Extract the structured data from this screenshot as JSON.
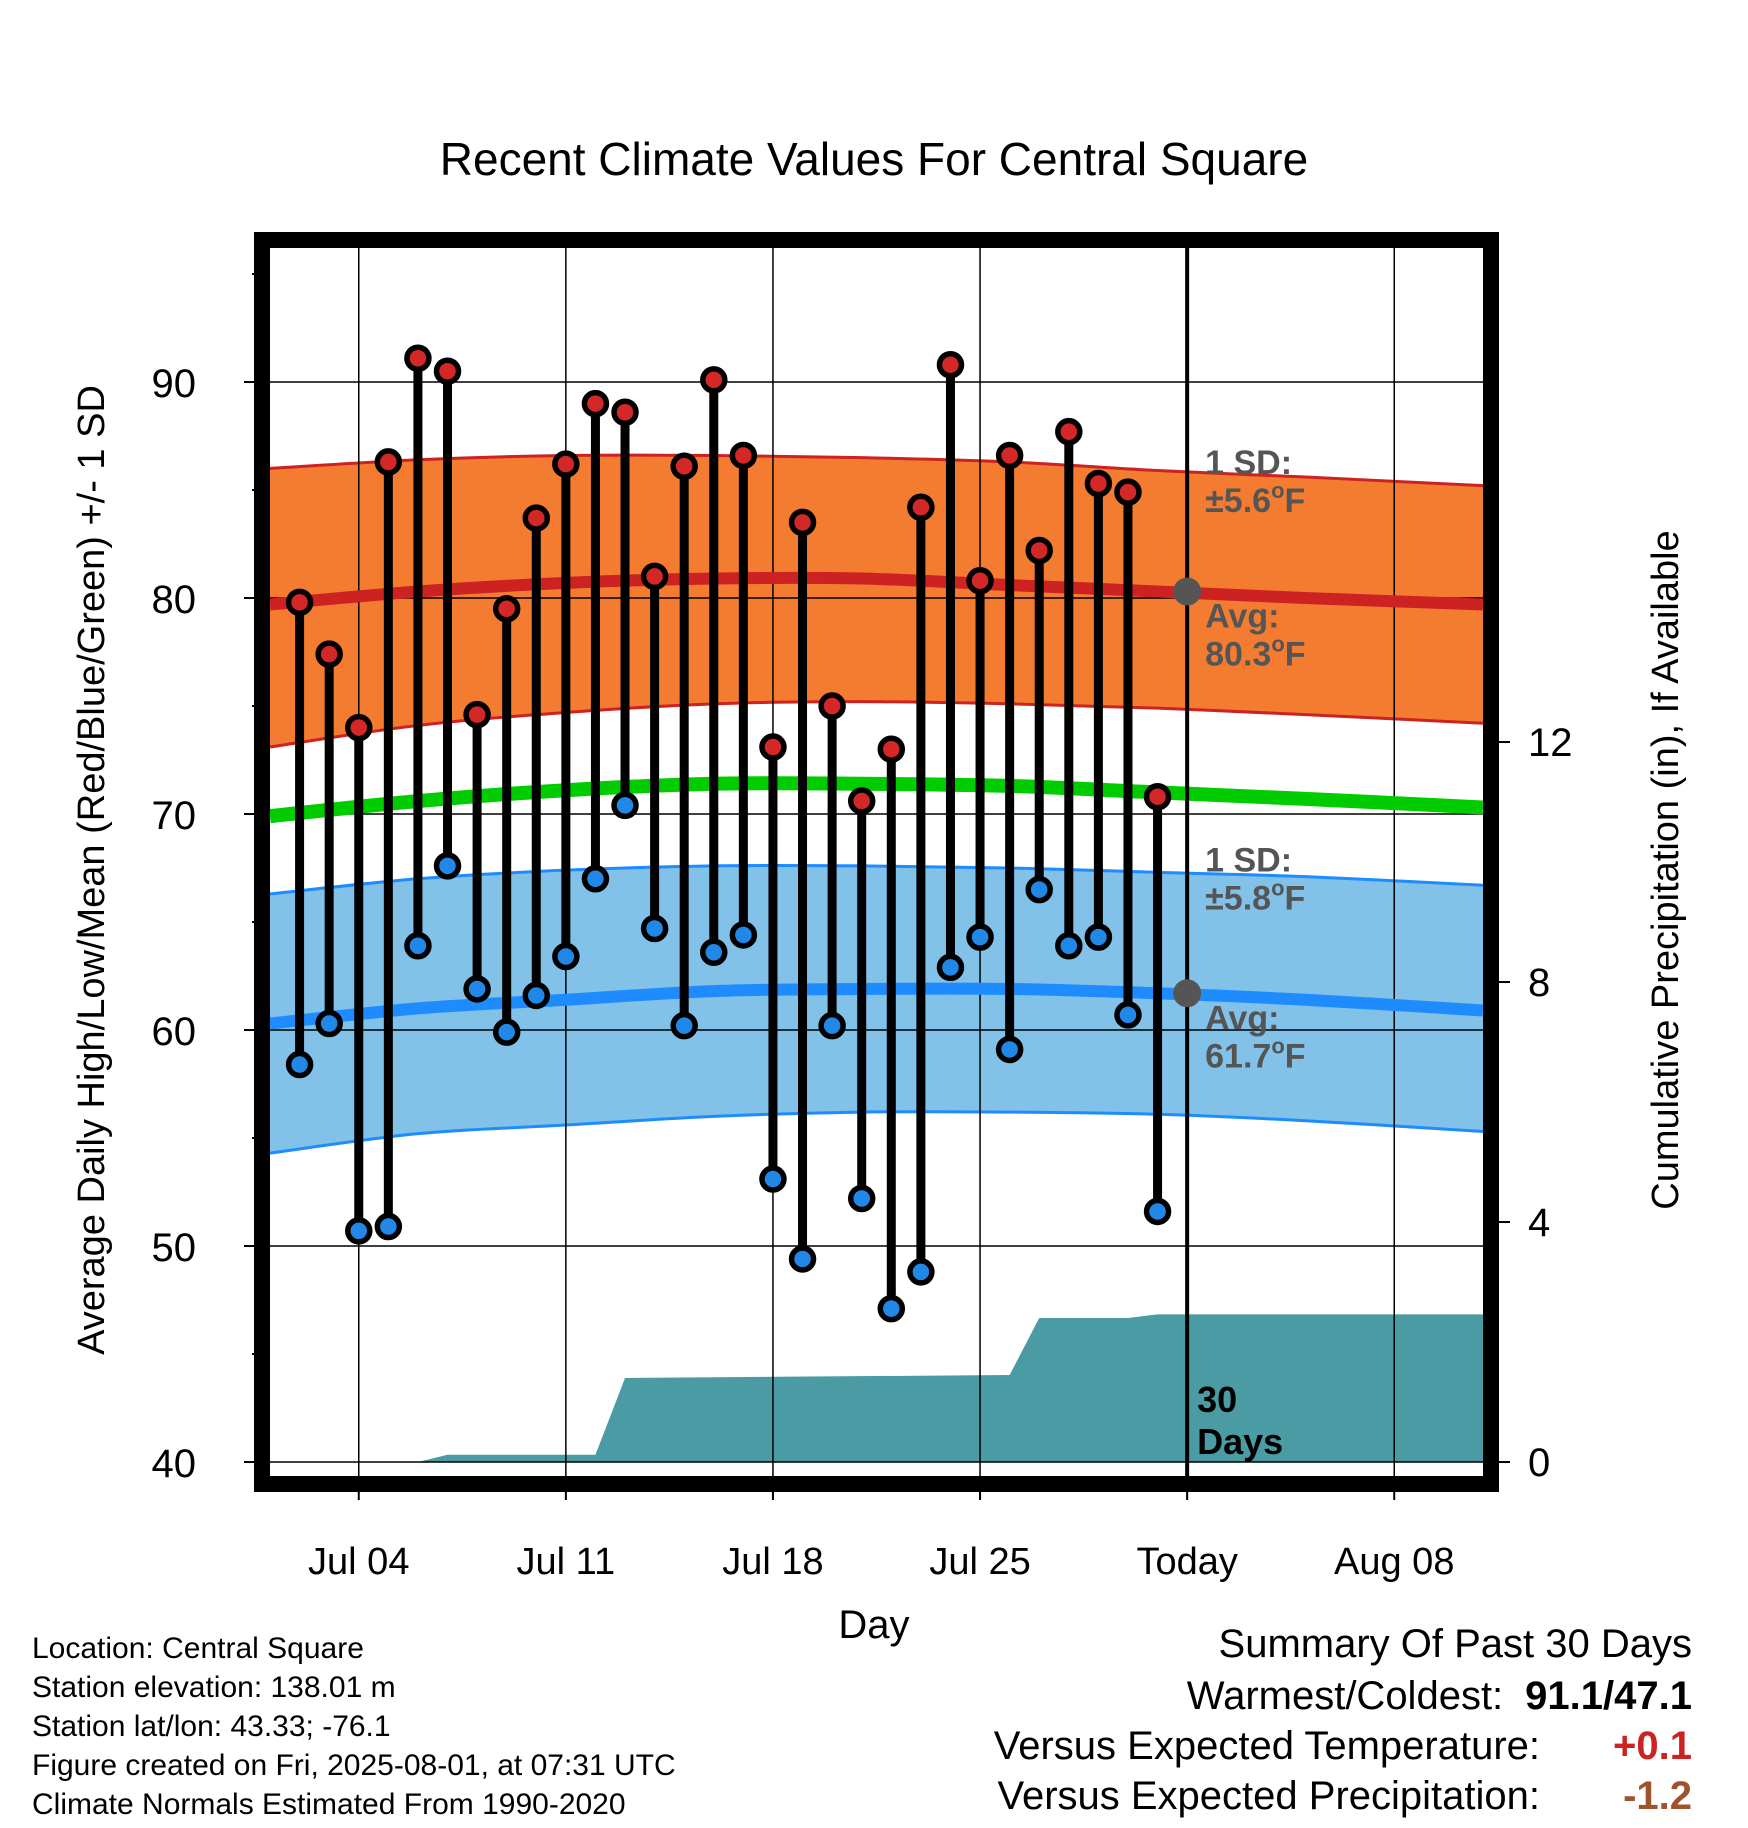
{
  "colors": {
    "high_band": "#F47C30",
    "high_line": "#CC2222",
    "low_band": "#82C1E8",
    "low_line": "#1E8CFF",
    "mean_line": "#00CC00",
    "precip": "#4A9BA3",
    "high_dot": "#D42828",
    "low_dot": "#2288E8",
    "avg_dot": "#555555",
    "annotation": "#555555",
    "temp_anomaly": "#CC2222",
    "precip_anomaly": "#A0522D"
  },
  "chart_data": {
    "type": "line",
    "title": "Recent Climate Values For Central Square",
    "xlabel": "Day",
    "ylabel_left": "Average Daily High/Low/Mean (Red/Blue/Green) +/- 1 SD",
    "ylabel_right": "Cumulative Precipitation (in), If Available",
    "ylim_left": [
      40,
      95
    ],
    "ylim_right": [
      0,
      20.4
    ],
    "left_ticks": [
      40,
      50,
      60,
      70,
      80,
      90
    ],
    "right_ticks": [
      0,
      4,
      8,
      12
    ],
    "grid": true,
    "x_range": [
      "2025-07-01",
      "2025-08-11"
    ],
    "x_ticks": [
      {
        "date": "2025-07-04",
        "label": "Jul 04"
      },
      {
        "date": "2025-07-11",
        "label": "Jul 11"
      },
      {
        "date": "2025-07-18",
        "label": "Jul 18"
      },
      {
        "date": "2025-07-25",
        "label": "Jul 25"
      },
      {
        "date": "2025-08-01",
        "label": "Today"
      },
      {
        "date": "2025-08-08",
        "label": "Aug 08"
      }
    ],
    "today": "2025-08-01",
    "normals": {
      "dates": [
        "2025-07-01",
        "2025-07-06",
        "2025-07-11",
        "2025-07-16",
        "2025-07-21",
        "2025-07-26",
        "2025-07-31",
        "2025-08-05",
        "2025-08-11"
      ],
      "high_avg": [
        79.7,
        80.3,
        80.7,
        80.9,
        80.9,
        80.6,
        80.3,
        80.0,
        79.7
      ],
      "high_sd_upper": [
        86.0,
        86.4,
        86.6,
        86.6,
        86.5,
        86.3,
        85.9,
        85.6,
        85.2
      ],
      "high_sd_lower": [
        73.1,
        74.1,
        74.7,
        75.1,
        75.2,
        75.1,
        74.9,
        74.6,
        74.2
      ],
      "mean_avg": [
        69.9,
        70.6,
        71.1,
        71.4,
        71.4,
        71.3,
        71.0,
        70.7,
        70.3
      ],
      "low_avg": [
        60.3,
        61.0,
        61.4,
        61.8,
        61.9,
        61.9,
        61.7,
        61.4,
        60.9
      ],
      "low_sd_upper": [
        66.3,
        67.0,
        67.4,
        67.6,
        67.6,
        67.5,
        67.3,
        67.1,
        66.7
      ],
      "low_sd_lower": [
        54.3,
        55.2,
        55.6,
        56.0,
        56.2,
        56.2,
        56.1,
        55.8,
        55.3
      ]
    },
    "series": [
      {
        "name": "High",
        "dates": [
          "2025-07-02",
          "2025-07-03",
          "2025-07-04",
          "2025-07-05",
          "2025-07-06",
          "2025-07-07",
          "2025-07-08",
          "2025-07-09",
          "2025-07-10",
          "2025-07-11",
          "2025-07-12",
          "2025-07-13",
          "2025-07-14",
          "2025-07-15",
          "2025-07-16",
          "2025-07-17",
          "2025-07-18",
          "2025-07-19",
          "2025-07-20",
          "2025-07-21",
          "2025-07-22",
          "2025-07-23",
          "2025-07-24",
          "2025-07-25",
          "2025-07-26",
          "2025-07-27",
          "2025-07-28",
          "2025-07-29",
          "2025-07-30",
          "2025-07-31"
        ],
        "values": [
          79.8,
          77.4,
          74.0,
          86.3,
          91.1,
          90.5,
          74.6,
          79.5,
          83.7,
          86.2,
          89.0,
          88.6,
          81.0,
          86.1,
          90.1,
          86.6,
          73.1,
          83.5,
          75.0,
          70.6,
          73.0,
          84.2,
          90.8,
          80.8,
          86.6,
          82.2,
          87.7,
          85.3,
          84.9,
          70.8
        ]
      },
      {
        "name": "Low",
        "dates": [
          "2025-07-02",
          "2025-07-03",
          "2025-07-04",
          "2025-07-05",
          "2025-07-06",
          "2025-07-07",
          "2025-07-08",
          "2025-07-09",
          "2025-07-10",
          "2025-07-11",
          "2025-07-12",
          "2025-07-13",
          "2025-07-14",
          "2025-07-15",
          "2025-07-16",
          "2025-07-17",
          "2025-07-18",
          "2025-07-19",
          "2025-07-20",
          "2025-07-21",
          "2025-07-22",
          "2025-07-23",
          "2025-07-24",
          "2025-07-25",
          "2025-07-26",
          "2025-07-27",
          "2025-07-28",
          "2025-07-29",
          "2025-07-30",
          "2025-07-31"
        ],
        "values": [
          58.4,
          60.3,
          50.7,
          50.9,
          63.9,
          67.6,
          61.9,
          59.9,
          61.6,
          63.4,
          67.0,
          70.4,
          64.7,
          60.2,
          63.6,
          64.4,
          53.1,
          49.4,
          60.2,
          52.2,
          47.1,
          48.8,
          62.9,
          64.3,
          59.1,
          66.5,
          63.9,
          64.3,
          60.7,
          51.6
        ]
      }
    ],
    "precipitation": {
      "dates": [
        "2025-07-01",
        "2025-07-06",
        "2025-07-07",
        "2025-07-12",
        "2025-07-13",
        "2025-07-26",
        "2025-07-27",
        "2025-07-30",
        "2025-07-31",
        "2025-08-11"
      ],
      "cumulative": [
        0.0,
        0.0,
        0.12,
        0.12,
        1.4,
        1.45,
        2.4,
        2.4,
        2.46,
        2.46
      ]
    },
    "annotations": {
      "high_sd_label": "1 SD:",
      "high_sd_value": "±5.6",
      "high_avg_label": "Avg:",
      "high_avg_value": "80.3",
      "low_sd_label": "1 SD:",
      "low_sd_value": "±5.8",
      "low_avg_label": "Avg:",
      "low_avg_value": "61.7",
      "unit_sup": "o",
      "unit": "F",
      "days_line1": "30",
      "days_line2": "Days"
    }
  },
  "info": {
    "location": "Location: Central Square",
    "elevation": "Station elevation: 138.01 m",
    "latlon": "Station lat/lon: 43.33; -76.1",
    "created": "Figure created on Fri, 2025-08-01, at 07:31 UTC",
    "normals": "Climate Normals Estimated From 1990-2020"
  },
  "summary": {
    "title": "Summary Of Past 30 Days",
    "warm_cold_label": "Warmest/Coldest:",
    "warm_cold_value": "91.1/47.1",
    "temp_label": "Versus Expected Temperature:",
    "temp_value": "+0.1",
    "precip_label": "Versus Expected Precipitation:",
    "precip_value": "-1.2"
  }
}
